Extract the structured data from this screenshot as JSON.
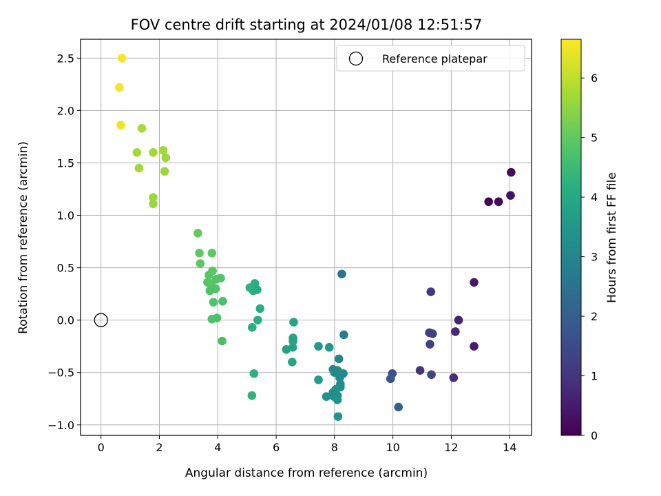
{
  "chart_data": {
    "type": "scatter",
    "title": "FOV centre drift starting at 2024/01/08 12:51:57",
    "xlabel": "Angular distance from reference (arcmin)",
    "ylabel": "Rotation from reference (arcmin)",
    "xlim": [
      -0.7,
      14.75
    ],
    "ylim": [
      -1.1,
      2.68
    ],
    "xticks": [
      0,
      2,
      4,
      6,
      8,
      10,
      12,
      14
    ],
    "yticks": [
      -1.0,
      -0.5,
      0.0,
      0.5,
      1.0,
      1.5,
      2.0,
      2.5
    ],
    "grid": true,
    "legend": {
      "location": "top-right",
      "entries": [
        "Reference platepar"
      ]
    },
    "reference_point": {
      "x": 0,
      "y": 0,
      "marker": "open-circle"
    },
    "colorbar": {
      "label": "Hours from first FF file",
      "colormap": "viridis",
      "range": [
        0,
        6.65
      ],
      "ticks": [
        0,
        1,
        2,
        3,
        4,
        5,
        6
      ]
    },
    "points": [
      {
        "x": 13.28,
        "y": 1.13,
        "h": 0.1
      },
      {
        "x": 13.62,
        "y": 1.13,
        "h": 0.15
      },
      {
        "x": 14.05,
        "y": 1.41,
        "h": 0.2
      },
      {
        "x": 14.03,
        "y": 1.19,
        "h": 0.3
      },
      {
        "x": 12.78,
        "y": 0.36,
        "h": 0.45
      },
      {
        "x": 12.78,
        "y": -0.25,
        "h": 0.5
      },
      {
        "x": 12.25,
        "y": 0.0,
        "h": 0.65
      },
      {
        "x": 12.14,
        "y": -0.11,
        "h": 0.75
      },
      {
        "x": 12.08,
        "y": -0.55,
        "h": 0.85
      },
      {
        "x": 10.93,
        "y": -0.48,
        "h": 1.0
      },
      {
        "x": 11.3,
        "y": 0.27,
        "h": 1.1
      },
      {
        "x": 11.25,
        "y": -0.12,
        "h": 1.2
      },
      {
        "x": 11.36,
        "y": -0.13,
        "h": 1.25
      },
      {
        "x": 11.27,
        "y": -0.23,
        "h": 1.3
      },
      {
        "x": 11.32,
        "y": -0.52,
        "h": 1.4
      },
      {
        "x": 9.98,
        "y": -0.51,
        "h": 1.7
      },
      {
        "x": 9.92,
        "y": -0.56,
        "h": 1.8
      },
      {
        "x": 10.19,
        "y": -0.83,
        "h": 2.1
      },
      {
        "x": 8.25,
        "y": 0.44,
        "h": 2.55
      },
      {
        "x": 8.32,
        "y": -0.14,
        "h": 2.85
      },
      {
        "x": 8.15,
        "y": -0.37,
        "h": 3.0
      },
      {
        "x": 7.95,
        "y": -0.47,
        "h": 3.05
      },
      {
        "x": 8.1,
        "y": -0.48,
        "h": 3.1
      },
      {
        "x": 8.3,
        "y": -0.51,
        "h": 3.1
      },
      {
        "x": 8.0,
        "y": -0.5,
        "h": 3.15
      },
      {
        "x": 8.18,
        "y": -0.55,
        "h": 3.15
      },
      {
        "x": 8.2,
        "y": -0.61,
        "h": 3.2
      },
      {
        "x": 8.2,
        "y": -0.64,
        "h": 3.2
      },
      {
        "x": 8.05,
        "y": -0.66,
        "h": 3.25
      },
      {
        "x": 7.95,
        "y": -0.69,
        "h": 3.25
      },
      {
        "x": 8.1,
        "y": -0.72,
        "h": 3.3
      },
      {
        "x": 7.98,
        "y": -0.73,
        "h": 3.3
      },
      {
        "x": 7.72,
        "y": -0.73,
        "h": 3.35
      },
      {
        "x": 8.1,
        "y": -0.76,
        "h": 3.35
      },
      {
        "x": 8.12,
        "y": -0.92,
        "h": 3.4
      },
      {
        "x": 7.82,
        "y": -0.26,
        "h": 3.5
      },
      {
        "x": 7.45,
        "y": -0.25,
        "h": 3.55
      },
      {
        "x": 7.45,
        "y": -0.57,
        "h": 3.6
      },
      {
        "x": 6.35,
        "y": -0.28,
        "h": 3.75
      },
      {
        "x": 6.57,
        "y": -0.26,
        "h": 3.8
      },
      {
        "x": 6.58,
        "y": -0.2,
        "h": 3.85
      },
      {
        "x": 6.58,
        "y": -0.17,
        "h": 3.85
      },
      {
        "x": 6.6,
        "y": -0.02,
        "h": 3.9
      },
      {
        "x": 6.55,
        "y": -0.4,
        "h": 3.9
      },
      {
        "x": 5.27,
        "y": 0.35,
        "h": 4.1
      },
      {
        "x": 5.35,
        "y": 0.29,
        "h": 4.1
      },
      {
        "x": 5.22,
        "y": 0.28,
        "h": 4.15
      },
      {
        "x": 5.1,
        "y": 0.31,
        "h": 4.25
      },
      {
        "x": 5.45,
        "y": 0.11,
        "h": 4.15
      },
      {
        "x": 5.37,
        "y": 0.0,
        "h": 4.2
      },
      {
        "x": 5.18,
        "y": -0.07,
        "h": 4.2
      },
      {
        "x": 5.24,
        "y": -0.51,
        "h": 4.25
      },
      {
        "x": 5.17,
        "y": -0.72,
        "h": 4.3
      },
      {
        "x": 3.32,
        "y": 0.83,
        "h": 5.05
      },
      {
        "x": 3.37,
        "y": 0.64,
        "h": 5.0
      },
      {
        "x": 3.8,
        "y": 0.64,
        "h": 4.95
      },
      {
        "x": 3.4,
        "y": 0.54,
        "h": 4.95
      },
      {
        "x": 3.7,
        "y": 0.43,
        "h": 4.9
      },
      {
        "x": 3.82,
        "y": 0.47,
        "h": 4.9
      },
      {
        "x": 3.65,
        "y": 0.36,
        "h": 4.85
      },
      {
        "x": 3.78,
        "y": 0.35,
        "h": 4.85
      },
      {
        "x": 3.95,
        "y": 0.39,
        "h": 4.8
      },
      {
        "x": 4.1,
        "y": 0.4,
        "h": 4.8
      },
      {
        "x": 3.93,
        "y": 0.3,
        "h": 4.8
      },
      {
        "x": 3.73,
        "y": 0.28,
        "h": 4.75
      },
      {
        "x": 3.85,
        "y": 0.17,
        "h": 4.75
      },
      {
        "x": 4.17,
        "y": 0.18,
        "h": 4.7
      },
      {
        "x": 3.8,
        "y": 0.01,
        "h": 4.75
      },
      {
        "x": 3.97,
        "y": 0.02,
        "h": 4.7
      },
      {
        "x": 4.15,
        "y": -0.2,
        "h": 4.7
      },
      {
        "x": 1.4,
        "y": 1.83,
        "h": 5.75
      },
      {
        "x": 1.23,
        "y": 1.6,
        "h": 5.7
      },
      {
        "x": 1.79,
        "y": 1.6,
        "h": 5.7
      },
      {
        "x": 2.13,
        "y": 1.62,
        "h": 5.7
      },
      {
        "x": 2.22,
        "y": 1.55,
        "h": 5.65
      },
      {
        "x": 1.3,
        "y": 1.45,
        "h": 5.7
      },
      {
        "x": 2.18,
        "y": 1.42,
        "h": 5.65
      },
      {
        "x": 1.79,
        "y": 1.17,
        "h": 5.65
      },
      {
        "x": 1.79,
        "y": 1.11,
        "h": 5.6
      },
      {
        "x": 0.72,
        "y": 2.5,
        "h": 6.6
      },
      {
        "x": 0.63,
        "y": 2.22,
        "h": 6.55
      },
      {
        "x": 0.68,
        "y": 1.86,
        "h": 6.5
      }
    ]
  }
}
